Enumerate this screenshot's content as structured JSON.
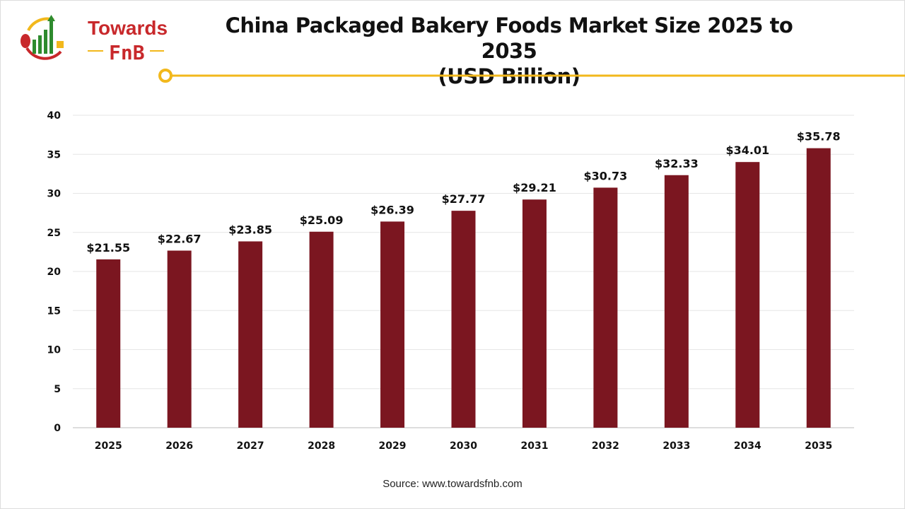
{
  "logo": {
    "line1": "Towards",
    "line2": "FnB"
  },
  "title_line1": "China Packaged Bakery Foods Market Size 2025 to 2035",
  "title_line2": "(USD Billion)",
  "source": "Source: www.towardsfnb.com",
  "colors": {
    "bar": "#7b1620",
    "accent": "#f2b81c",
    "logo_red": "#c8282b",
    "logo_green": "#2e8b2e"
  },
  "chart_data": {
    "type": "bar",
    "title": "China Packaged Bakery Foods Market Size 2025 to 2035 (USD Billion)",
    "categories": [
      "2025",
      "2026",
      "2027",
      "2028",
      "2029",
      "2030",
      "2031",
      "2032",
      "2033",
      "2034",
      "2035"
    ],
    "values": [
      21.55,
      22.67,
      23.85,
      25.09,
      26.39,
      27.77,
      29.21,
      30.73,
      32.33,
      34.01,
      35.78
    ],
    "data_labels": [
      "$21.55",
      "$22.67",
      "$23.85",
      "$25.09",
      "$26.39",
      "$27.77",
      "$29.21",
      "$30.73",
      "$32.33",
      "$34.01",
      "$35.78"
    ],
    "yticks": [
      0,
      5,
      10,
      15,
      20,
      25,
      30,
      35,
      40
    ],
    "ylim": [
      0,
      40
    ],
    "grid": true,
    "xlabel": "",
    "ylabel": ""
  }
}
